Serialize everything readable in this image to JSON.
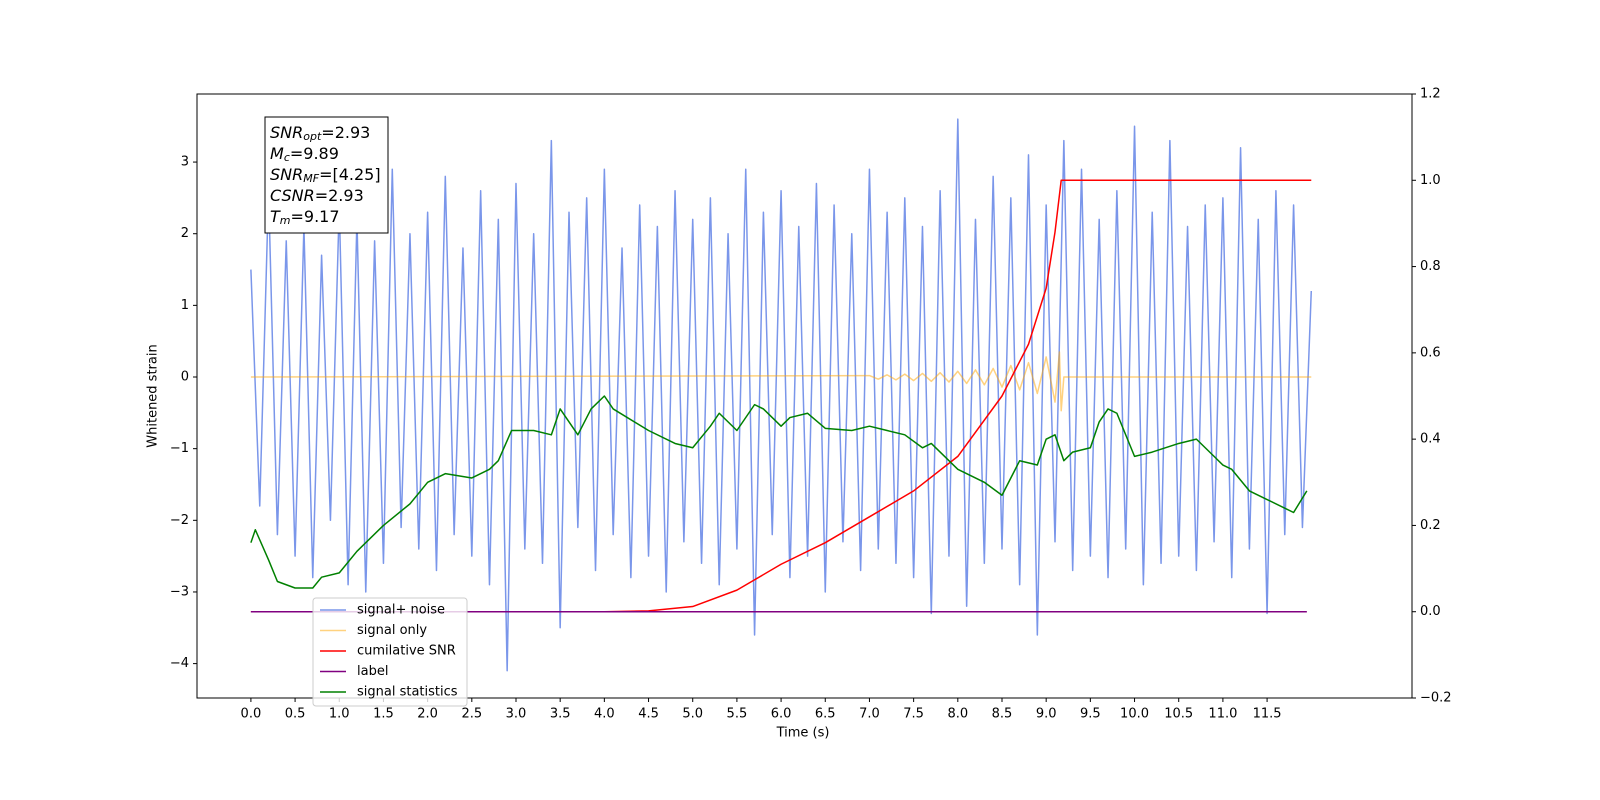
{
  "chart_data": {
    "type": "line",
    "xlabel": "Time (s)",
    "ylabel": "Whitened strain",
    "xlim": [
      -0.61,
      13.14
    ],
    "ylim": [
      -4.48,
      3.95
    ],
    "y2lim": [
      -0.2,
      1.2
    ],
    "xticks": [
      {
        "value": 0,
        "label": "0.0"
      },
      0.5,
      {
        "value": 1,
        "label": "1.0"
      },
      1.5,
      {
        "value": 2,
        "label": "2.0"
      },
      2.5,
      {
        "value": 3,
        "label": "3.0"
      },
      3.5,
      {
        "value": 4,
        "label": "4.0"
      },
      4.5,
      {
        "value": 5,
        "label": "5.0"
      },
      5.5,
      {
        "value": 6,
        "label": "6.0"
      },
      6.5,
      {
        "value": 7,
        "label": "7.0"
      },
      7.5,
      {
        "value": 8,
        "label": "8.0"
      },
      8.5,
      {
        "value": 9,
        "label": "9.0"
      },
      9.5,
      {
        "value": 10,
        "label": "10.0"
      },
      10.5,
      {
        "value": 11,
        "label": "11.0"
      },
      11.5
    ],
    "yticks": [
      {
        "value": -4,
        "label": "−4"
      },
      {
        "value": -3,
        "label": "−3"
      },
      {
        "value": -2,
        "label": "−2"
      },
      {
        "value": -1,
        "label": "−1"
      },
      0,
      1,
      2,
      3
    ],
    "y2ticks": [
      {
        "value": -0.2,
        "label": "−0.2"
      },
      {
        "value": 0,
        "label": "0.0"
      },
      0.2,
      0.4,
      0.6,
      0.8,
      {
        "value": 1,
        "label": "1.0"
      },
      1.2
    ],
    "legend_loc": "lower left",
    "annotation": [
      {
        "main": "SNR",
        "sub": "opt",
        "rest": "=2.93"
      },
      {
        "main": "M",
        "sub": "c",
        "rest": "=9.89"
      },
      {
        "main": "SNR",
        "sub": "MF",
        "rest": "=[4.25]"
      },
      {
        "main": "CSNR",
        "sub": null,
        "rest": "=2.93"
      },
      {
        "main": "T",
        "sub": "m",
        "rest": "=9.17"
      }
    ],
    "series": [
      {
        "name": "signal+ noise",
        "color": "#4169e1",
        "x": [
          0,
          0.1,
          0.2,
          0.3,
          0.4,
          0.5,
          0.6,
          0.7,
          0.8,
          0.9,
          1,
          1.1,
          1.2,
          1.3,
          1.4,
          1.5,
          1.6,
          1.7,
          1.8,
          1.9,
          2,
          2.1,
          2.2,
          2.3,
          2.4,
          2.5,
          2.6,
          2.7,
          2.8,
          2.9,
          3,
          3.1,
          3.2,
          3.3,
          3.4,
          3.5,
          3.6,
          3.7,
          3.8,
          3.9,
          4,
          4.1,
          4.2,
          4.3,
          4.4,
          4.5,
          4.6,
          4.7,
          4.8,
          4.9,
          5,
          5.1,
          5.2,
          5.3,
          5.4,
          5.5,
          5.6,
          5.7,
          5.8,
          5.9,
          6,
          6.1,
          6.2,
          6.3,
          6.4,
          6.5,
          6.6,
          6.7,
          6.8,
          6.9,
          7,
          7.1,
          7.2,
          7.3,
          7.4,
          7.5,
          7.6,
          7.7,
          7.8,
          7.9,
          8,
          8.1,
          8.2,
          8.3,
          8.4,
          8.5,
          8.6,
          8.7,
          8.8,
          8.9,
          9,
          9.1,
          9.2,
          9.3,
          9.4,
          9.5,
          9.6,
          9.7,
          9.8,
          9.9,
          10,
          10.1,
          10.2,
          10.3,
          10.4,
          10.5,
          10.6,
          10.7,
          10.8,
          10.9,
          11,
          11.1,
          11.2,
          11.3,
          11.4,
          11.5,
          11.6,
          11.7,
          11.8,
          11.9,
          12
        ],
        "values": [
          1.5,
          -1.8,
          2.6,
          -2.2,
          1.9,
          -2.5,
          2.1,
          -2.8,
          1.7,
          -2.0,
          2.4,
          -2.9,
          2.2,
          -3.0,
          1.9,
          -2.6,
          2.9,
          -2.1,
          2.0,
          -2.4,
          2.3,
          -2.7,
          2.8,
          -2.2,
          1.8,
          -2.5,
          2.6,
          -2.9,
          2.2,
          -4.1,
          2.7,
          -2.4,
          2.0,
          -2.6,
          3.3,
          -3.5,
          2.3,
          -2.1,
          2.5,
          -2.7,
          2.9,
          -2.2,
          1.8,
          -2.8,
          2.4,
          -2.5,
          2.1,
          -3.0,
          2.6,
          -2.3,
          2.2,
          -2.6,
          2.5,
          -2.9,
          2.0,
          -2.4,
          2.9,
          -3.6,
          2.3,
          -2.2,
          2.6,
          -2.8,
          2.1,
          -2.5,
          2.7,
          -3.0,
          2.4,
          -2.3,
          2.0,
          -2.7,
          2.9,
          -2.4,
          2.3,
          -2.6,
          2.5,
          -2.8,
          2.1,
          -3.3,
          2.6,
          -2.5,
          3.6,
          -3.2,
          2.2,
          -2.6,
          2.8,
          -2.4,
          2.5,
          -2.9,
          3.1,
          -3.6,
          2.4,
          -2.3,
          3.3,
          -2.7,
          2.9,
          -2.5,
          2.2,
          -2.8,
          2.6,
          -2.4,
          3.5,
          -2.9,
          2.3,
          -2.6,
          3.3,
          -2.5,
          2.1,
          -2.7,
          2.4,
          -2.3,
          2.5,
          -2.8,
          3.2,
          -2.4,
          2.2,
          -3.3,
          2.6,
          -2.2,
          2.4,
          -2.1,
          1.2
        ]
      },
      {
        "name": "signal only",
        "color": "#ffa500",
        "x": [
          0,
          7,
          7.1,
          7.2,
          7.3,
          7.4,
          7.5,
          7.6,
          7.7,
          7.8,
          7.9,
          8,
          8.1,
          8.2,
          8.3,
          8.4,
          8.5,
          8.6,
          8.7,
          8.8,
          8.9,
          9,
          9.1,
          9.15,
          9.17,
          9.2,
          12
        ],
        "values": [
          0,
          0.02,
          -0.03,
          0.03,
          -0.04,
          0.04,
          -0.05,
          0.05,
          -0.06,
          0.06,
          -0.07,
          0.08,
          -0.09,
          0.1,
          -0.11,
          0.12,
          -0.14,
          0.16,
          -0.18,
          0.2,
          -0.23,
          0.28,
          -0.35,
          0.35,
          -0.47,
          0,
          0
        ]
      },
      {
        "name": "cumilative SNR",
        "color": "#ff0000",
        "axis": "y2",
        "x": [
          0,
          4,
          4.5,
          5,
          5.5,
          6,
          6.5,
          7,
          7.5,
          8,
          8.5,
          8.8,
          9,
          9.1,
          9.17,
          12
        ],
        "values": [
          0,
          0,
          0.002,
          0.012,
          0.05,
          0.11,
          0.16,
          0.22,
          0.28,
          0.36,
          0.5,
          0.62,
          0.75,
          0.88,
          1,
          1
        ]
      },
      {
        "name": "label",
        "color": "#800080",
        "axis": "y2",
        "x": [
          0,
          11.95
        ],
        "values": [
          0,
          0
        ]
      },
      {
        "name": "signal statistics",
        "color": "#008000",
        "axis": "y2",
        "x": [
          0,
          0.05,
          0.2,
          0.3,
          0.5,
          0.7,
          0.8,
          1,
          1.2,
          1.5,
          1.8,
          2,
          2.2,
          2.5,
          2.7,
          2.8,
          2.95,
          3.2,
          3.4,
          3.5,
          3.7,
          3.85,
          4,
          4.1,
          4.5,
          4.8,
          5,
          5.2,
          5.3,
          5.5,
          5.7,
          5.8,
          6,
          6.1,
          6.3,
          6.5,
          6.8,
          7,
          7.2,
          7.4,
          7.6,
          7.7,
          7.8,
          8,
          8.3,
          8.5,
          8.7,
          8.9,
          9,
          9.1,
          9.2,
          9.3,
          9.5,
          9.6,
          9.7,
          9.8,
          10,
          10.2,
          10.5,
          10.7,
          10.9,
          11,
          11.1,
          11.3,
          11.5,
          11.8,
          11.95
        ],
        "values": [
          0.16,
          0.19,
          0.12,
          0.07,
          0.055,
          0.055,
          0.08,
          0.09,
          0.14,
          0.2,
          0.25,
          0.3,
          0.32,
          0.31,
          0.33,
          0.35,
          0.42,
          0.42,
          0.41,
          0.47,
          0.41,
          0.47,
          0.5,
          0.47,
          0.42,
          0.39,
          0.38,
          0.43,
          0.46,
          0.42,
          0.48,
          0.47,
          0.43,
          0.45,
          0.46,
          0.425,
          0.42,
          0.43,
          0.42,
          0.41,
          0.38,
          0.39,
          0.37,
          0.33,
          0.3,
          0.27,
          0.35,
          0.34,
          0.4,
          0.41,
          0.35,
          0.37,
          0.38,
          0.44,
          0.47,
          0.46,
          0.36,
          0.37,
          0.39,
          0.4,
          0.36,
          0.34,
          0.33,
          0.28,
          0.26,
          0.23,
          0.28
        ]
      }
    ]
  }
}
